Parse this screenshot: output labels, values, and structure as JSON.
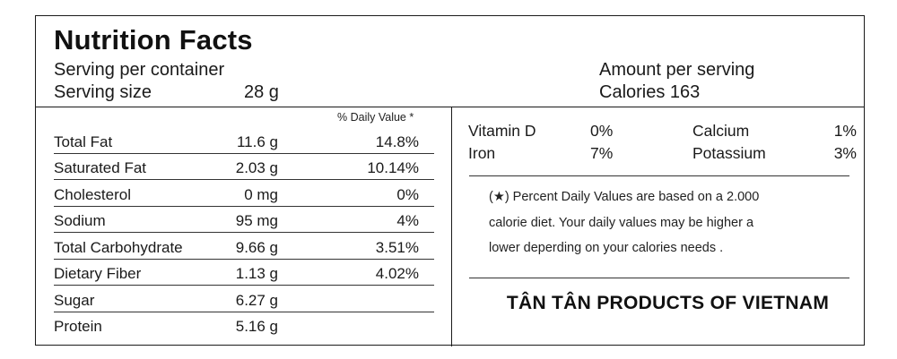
{
  "header": {
    "title": "Nutrition Facts",
    "serving_per_container_label": "Serving per container",
    "serving_size_label": "Serving size",
    "serving_size_value": "28 g",
    "amount_per_serving_label": "Amount per serving",
    "calories": "Calories 163"
  },
  "daily_value_header": "% Daily Value *",
  "nutrients": [
    {
      "name": "Total Fat",
      "amount": "11.6 g",
      "dv": "14.8%"
    },
    {
      "name": "Saturated Fat",
      "amount": "2.03 g",
      "dv": "10.14%"
    },
    {
      "name": "Cholesterol",
      "amount": "0 mg",
      "dv": "0%"
    },
    {
      "name": "Sodium",
      "amount": "95 mg",
      "dv": "4%"
    },
    {
      "name": "Total Carbohydrate",
      "amount": "9.66 g",
      "dv": "3.51%"
    },
    {
      "name": "Dietary Fiber",
      "amount": "1.13 g",
      "dv": "4.02%"
    },
    {
      "name": "Sugar",
      "amount": "6.27 g",
      "dv": ""
    },
    {
      "name": "Protein",
      "amount": "5.16 g",
      "dv": ""
    }
  ],
  "vitamins": [
    {
      "name1": "Vitamin D",
      "value1": "0%",
      "name2": "Calcium",
      "value2": "1%"
    },
    {
      "name1": "Iron",
      "value1": "7%",
      "name2": "Potassium",
      "value2": "3%"
    }
  ],
  "footnote": {
    "line1": "(★) Percent Daily Values are based on a 2.000",
    "line2": "calorie diet. Your daily values may be higher a",
    "line3": "lower deperding on your calories needs ."
  },
  "brand": "TÂN TÂN PRODUCTS OF VIETNAM"
}
